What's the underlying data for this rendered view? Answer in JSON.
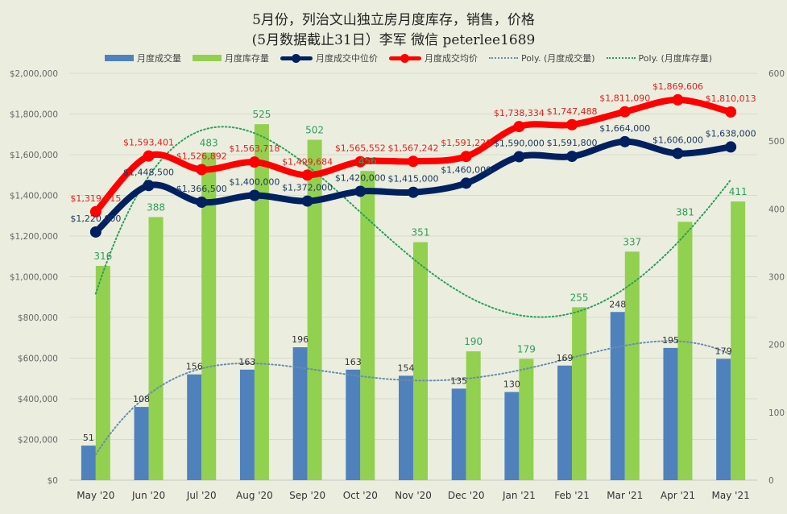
{
  "title_line1": "5月份，列治文山独立房月度库存，销售，价格",
  "title_line2": "(5月数据截止31日）李军  微信 peterlee1689",
  "legend": [
    {
      "label": "月度成交量",
      "kind": "bar",
      "color": "#4f81bd"
    },
    {
      "label": "月度库存量",
      "kind": "bar",
      "color": "#92d050"
    },
    {
      "label": "月度成交中位价",
      "kind": "line",
      "color": "#002060"
    },
    {
      "label": "月度成交均价",
      "kind": "line",
      "color": "#ff0000"
    },
    {
      "label": "Poly. (月度成交量)",
      "kind": "dotted",
      "color": "#6a8cae"
    },
    {
      "label": "Poly. (月度库存量)",
      "kind": "dotted",
      "color": "#2e9e5a"
    }
  ],
  "chart_data": {
    "type": "bar",
    "title": "5月份，列治文山独立房月度库存，销售，价格 (5月数据截止31日）李军 微信 peterlee1689",
    "categories": [
      "May '20",
      "Jun '20",
      "Jul '20",
      "Aug '20",
      "Sep '20",
      "Oct '20",
      "Nov '20",
      "Dec '20",
      "Jan '21",
      "Feb '21",
      "Mar '21",
      "Apr '21",
      "May '21"
    ],
    "left_axis": {
      "min": 0,
      "max": 2000000,
      "step": 200000,
      "ticks": [
        "$0",
        "$200,000",
        "$400,000",
        "$600,000",
        "$800,000",
        "$1,000,000",
        "$1,200,000",
        "$1,400,000",
        "$1,600,000",
        "$1,800,000",
        "$2,000,000"
      ]
    },
    "right_axis": {
      "min": 0,
      "max": 600,
      "step": 100,
      "ticks": [
        "0",
        "100",
        "200",
        "300",
        "400",
        "500",
        "600"
      ]
    },
    "grid": true,
    "legend_position": "top",
    "series": [
      {
        "name": "月度成交量",
        "type": "bar",
        "axis": "right",
        "color": "#4f81bd",
        "label_color": "#333333",
        "values": [
          51,
          108,
          156,
          163,
          196,
          163,
          154,
          135,
          130,
          169,
          248,
          195,
          179
        ]
      },
      {
        "name": "月度库存量",
        "type": "bar",
        "axis": "right",
        "color": "#92d050",
        "label_color": "#2e9e5a",
        "values": [
          316,
          388,
          483,
          525,
          502,
          456,
          351,
          190,
          179,
          255,
          337,
          381,
          411
        ]
      },
      {
        "name": "月度成交中位价",
        "type": "line",
        "axis": "left",
        "color": "#002060",
        "label_color": "#1f3864",
        "values": [
          1220000,
          1448500,
          1366500,
          1400000,
          1372000,
          1420000,
          1415000,
          1460000,
          1590000,
          1591800,
          1664000,
          1606000,
          1638000
        ],
        "labels": [
          "$1,220,000",
          "$1,448,500",
          "$1,366,500",
          "$1,400,000",
          "$1,372,000",
          "$1,420,000",
          "$1,415,000",
          "$1,460,000",
          "$1,590,000",
          "$1,591,800",
          "$1,664,000",
          "$1,606,000",
          "$1,638,000"
        ]
      },
      {
        "name": "月度成交均价",
        "type": "line",
        "axis": "left",
        "color": "#ff0000",
        "label_color": "#e0201e",
        "values": [
          1319615,
          1593401,
          1526892,
          1563718,
          1499684,
          1565552,
          1567242,
          1591220,
          1738334,
          1747488,
          1811090,
          1869606,
          1810013
        ],
        "labels": [
          "$1,319,615",
          "$1,593,401",
          "$1,526,892",
          "$1,563,718",
          "$1,499,684",
          "$1,565,552",
          "$1,567,242",
          "$1,591,220",
          "$1,738,334",
          "$1,747,488",
          "$1,811,090",
          "$1,869,606",
          "$1,810,013"
        ]
      },
      {
        "name": "Poly. (月度成交量)",
        "type": "trendline",
        "of": "月度成交量",
        "axis": "right",
        "color": "#6a8cae",
        "style": "dotted"
      },
      {
        "name": "Poly. (月度库存量)",
        "type": "trendline",
        "of": "月度库存量",
        "axis": "right",
        "color": "#2e9e5a",
        "style": "dotted"
      }
    ]
  }
}
